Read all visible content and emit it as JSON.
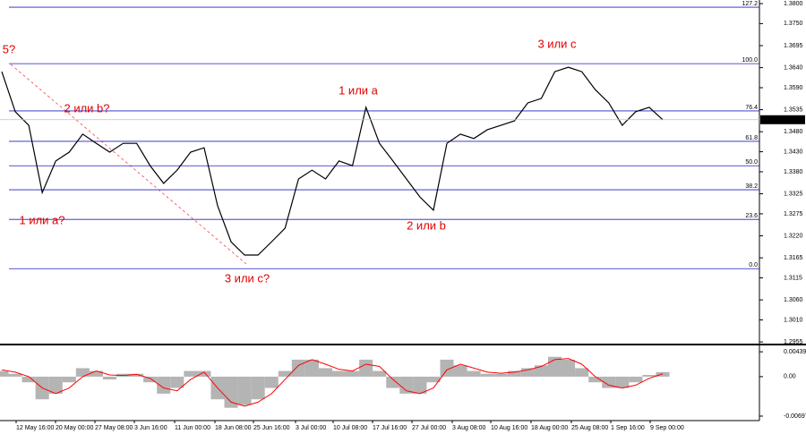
{
  "chart_data": [
    {
      "type": "line",
      "color": "#000000",
      "values": [
        1.363,
        1.353,
        1.3496,
        1.3328,
        1.3407,
        1.3429,
        1.3474,
        1.3451,
        1.3429,
        1.3451,
        1.3451,
        1.3395,
        1.3351,
        1.3384,
        1.3429,
        1.344,
        1.3295,
        1.3205,
        1.3172,
        1.3172,
        1.3205,
        1.3239,
        1.3362,
        1.3384,
        1.3362,
        1.3407,
        1.3395,
        1.3541,
        1.3451,
        1.3407,
        1.3362,
        1.3317,
        1.3284,
        1.3451,
        1.3474,
        1.3463,
        1.3485,
        1.3496,
        1.3507,
        1.3552,
        1.3563,
        1.363,
        1.3641,
        1.363,
        1.3585,
        1.3552,
        1.3496,
        1.353,
        1.3541,
        1.351
      ],
      "ylim": [
        1.2953,
        1.3809
      ],
      "yticks": [
        {
          "value": 1.38,
          "label": "1.3800"
        },
        {
          "value": 1.375,
          "label": "1.3750"
        },
        {
          "value": 1.3695,
          "label": "1.3695"
        },
        {
          "value": 1.364,
          "label": "1.3640"
        },
        {
          "value": 1.359,
          "label": "1.3590"
        },
        {
          "value": 1.3535,
          "label": "1.3535"
        },
        {
          "value": 1.348,
          "label": "1.3480"
        },
        {
          "value": 1.343,
          "label": "1.3430"
        },
        {
          "value": 1.338,
          "label": "1.3380"
        },
        {
          "value": 1.3325,
          "label": "1.3325"
        },
        {
          "value": 1.3275,
          "label": "1.3275"
        },
        {
          "value": 1.322,
          "label": "1.3220"
        },
        {
          "value": 1.3165,
          "label": "1.3165"
        },
        {
          "value": 1.3115,
          "label": "1.3115"
        },
        {
          "value": 1.306,
          "label": "1.3060"
        },
        {
          "value": 1.301,
          "label": "1.3010"
        },
        {
          "value": 1.2955,
          "label": "1.2955"
        }
      ],
      "current_price": {
        "value": 1.351,
        "label": "1.3510"
      },
      "fib_levels": [
        {
          "label": "127.2",
          "price": 1.3791
        },
        {
          "label": "100.0",
          "price": 1.365
        },
        {
          "label": "76.4",
          "price": 1.3532
        },
        {
          "label": "61.8",
          "price": 1.3456
        },
        {
          "label": "50.0",
          "price": 1.3395
        },
        {
          "label": "38.2",
          "price": 1.3335
        },
        {
          "label": "23.6",
          "price": 1.3261
        },
        {
          "label": "0.0",
          "price": 1.3138
        }
      ],
      "annotations": [
        "5?",
        "2 или b?",
        "1 или a?",
        "3 или c?",
        "1 или a",
        "2 или b",
        "3 или c"
      ]
    },
    {
      "type": "bar",
      "color": "#b4b4b4",
      "values": [
        0.001,
        0.0005,
        -0.001,
        -0.004,
        -0.003,
        -0.001,
        0.0015,
        0.001,
        -0.0005,
        0.0005,
        0.0005,
        -0.001,
        -0.003,
        -0.002,
        0.001,
        0.001,
        -0.004,
        -0.0055,
        -0.005,
        -0.004,
        -0.002,
        0.001,
        0.003,
        0.003,
        0.0015,
        0.001,
        0.001,
        0.003,
        0.001,
        -0.002,
        -0.003,
        -0.003,
        -0.001,
        0.003,
        0.002,
        0.001,
        0.0005,
        0.0005,
        0.001,
        0.0015,
        0.002,
        0.0035,
        0.003,
        0.0015,
        -0.001,
        -0.002,
        -0.002,
        -0.001,
        0.0003,
        0.0008
      ],
      "signal": {
        "color": "#ff0000",
        "values": [
          0.0012,
          0.0008,
          0.0,
          -0.002,
          -0.003,
          -0.002,
          0.0,
          0.001,
          0.0003,
          0.0002,
          0.0004,
          -0.0003,
          -0.002,
          -0.0025,
          -0.0005,
          0.0008,
          -0.002,
          -0.0045,
          -0.0052,
          -0.0045,
          -0.003,
          -0.0005,
          0.002,
          0.003,
          0.0022,
          0.0013,
          0.001,
          0.0022,
          0.0018,
          -0.0005,
          -0.0025,
          -0.003,
          -0.002,
          0.0012,
          0.0022,
          0.0015,
          0.0008,
          0.0006,
          0.0008,
          0.0012,
          0.0018,
          0.003,
          0.0032,
          0.0022,
          0.0,
          -0.0015,
          -0.002,
          -0.0015,
          -0.0003,
          0.0005
        ]
      },
      "ylim": [
        -0.00776,
        0.0052
      ],
      "yticks": [
        0.00439,
        {
          "value": 0,
          "label": "0.00"
        },
        -0.00697
      ],
      "x_labels": [
        "12 May 16:00",
        "20 May 00:00",
        "27 May 08:00",
        "3 Jun 16:00",
        "11 Jun 00:00",
        "18 Jun 08:00",
        "25 Jun 16:00",
        "3 Jul 00:00",
        "10 Jul 08:00",
        "17 Jul 16:00",
        "27 Jul 00:00",
        "3 Aug 08:00",
        "10 Aug 16:00",
        "18 Aug 00:00",
        "25 Aug 08:00",
        "1 Sep 16:00",
        "9 Sep 00:00"
      ]
    }
  ]
}
